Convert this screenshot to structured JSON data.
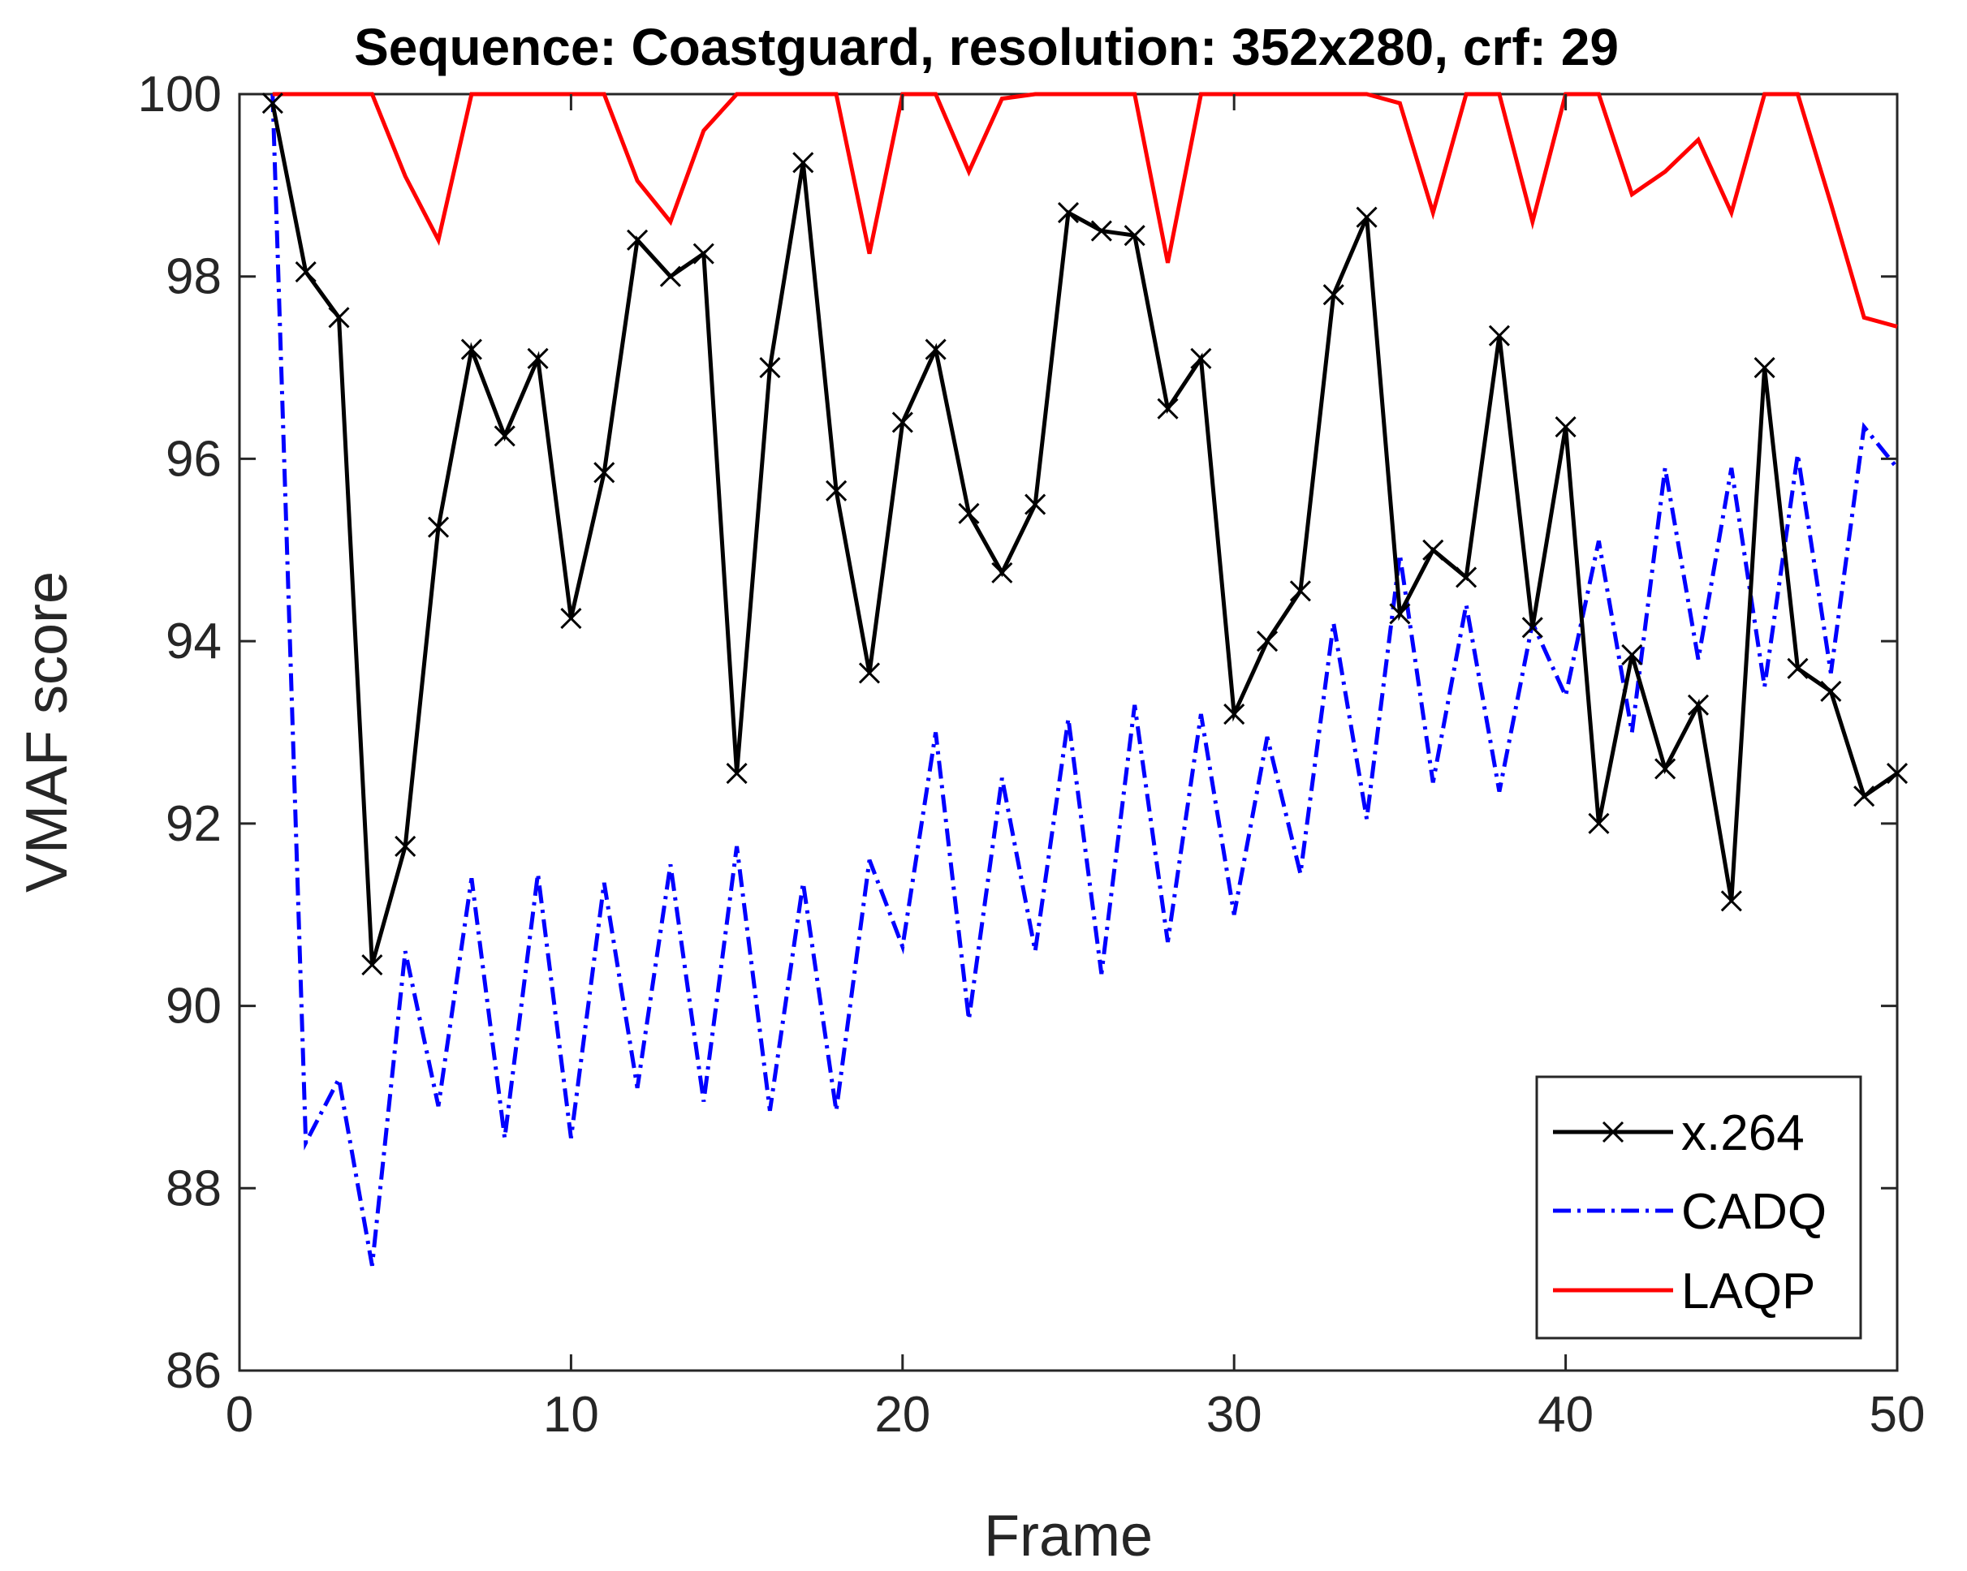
{
  "chart_data": {
    "type": "line",
    "title": "Sequence: Coastguard, resolution: 352x280, crf: 29",
    "xlabel": "Frame",
    "ylabel": "VMAF score",
    "xlim": [
      0,
      50
    ],
    "ylim": [
      86,
      100
    ],
    "xticks": [
      0,
      10,
      20,
      30,
      40,
      50
    ],
    "yticks": [
      86,
      88,
      90,
      92,
      94,
      96,
      98,
      100
    ],
    "grid": false,
    "legend_position": "bottom-right",
    "x": [
      1,
      2,
      3,
      4,
      5,
      6,
      7,
      8,
      9,
      10,
      11,
      12,
      13,
      14,
      15,
      16,
      17,
      18,
      19,
      20,
      21,
      22,
      23,
      24,
      25,
      26,
      27,
      28,
      29,
      30,
      31,
      32,
      33,
      34,
      35,
      36,
      37,
      38,
      39,
      40,
      41,
      42,
      43,
      44,
      45,
      46,
      47,
      48,
      49,
      50
    ],
    "series": [
      {
        "name": "x.264",
        "color": "#000000",
        "line_style": "solid",
        "marker": "x",
        "values": [
          99.9,
          98.05,
          97.55,
          90.45,
          91.75,
          95.25,
          97.2,
          96.25,
          97.1,
          94.25,
          95.85,
          98.4,
          98.0,
          98.25,
          92.55,
          97.0,
          99.25,
          95.65,
          93.65,
          96.4,
          97.2,
          95.4,
          94.75,
          95.5,
          98.7,
          98.5,
          98.45,
          96.55,
          97.1,
          93.2,
          94.0,
          94.55,
          97.8,
          98.65,
          94.3,
          95.0,
          94.7,
          97.35,
          94.15,
          96.35,
          92.0,
          93.85,
          92.6,
          93.3,
          91.15,
          97.0,
          93.7,
          93.45,
          92.3,
          92.55
        ]
      },
      {
        "name": "CADQ",
        "color": "#0000ff",
        "line_style": "dash-dot",
        "marker": "none",
        "values": [
          100.0,
          88.5,
          89.2,
          87.15,
          90.6,
          88.9,
          91.4,
          88.55,
          91.45,
          88.55,
          91.35,
          89.1,
          91.55,
          88.95,
          91.75,
          88.85,
          91.35,
          88.85,
          91.6,
          90.65,
          93.0,
          89.85,
          92.5,
          90.6,
          93.15,
          90.35,
          93.3,
          90.7,
          93.2,
          91.0,
          92.95,
          91.45,
          94.2,
          92.05,
          94.95,
          92.45,
          94.4,
          92.35,
          94.2,
          93.4,
          95.1,
          93.0,
          95.9,
          93.8,
          95.9,
          93.5,
          96.05,
          93.65,
          96.35,
          95.9
        ]
      },
      {
        "name": "LAQP",
        "color": "#ff0000",
        "line_style": "solid",
        "marker": "none",
        "values": [
          100.0,
          100.0,
          100.0,
          100.0,
          99.1,
          98.4,
          100.0,
          100.0,
          100.0,
          100.0,
          100.0,
          99.05,
          98.6,
          99.6,
          100.0,
          100.0,
          100.0,
          100.0,
          98.25,
          100.0,
          100.0,
          99.15,
          99.95,
          100.0,
          100.0,
          100.0,
          100.0,
          98.15,
          100.0,
          100.0,
          100.0,
          100.0,
          100.0,
          100.0,
          99.9,
          98.7,
          100.0,
          100.0,
          98.6,
          100.0,
          100.0,
          98.9,
          99.15,
          99.5,
          98.7,
          100.0,
          100.0,
          98.8,
          97.55,
          97.45
        ]
      }
    ]
  }
}
